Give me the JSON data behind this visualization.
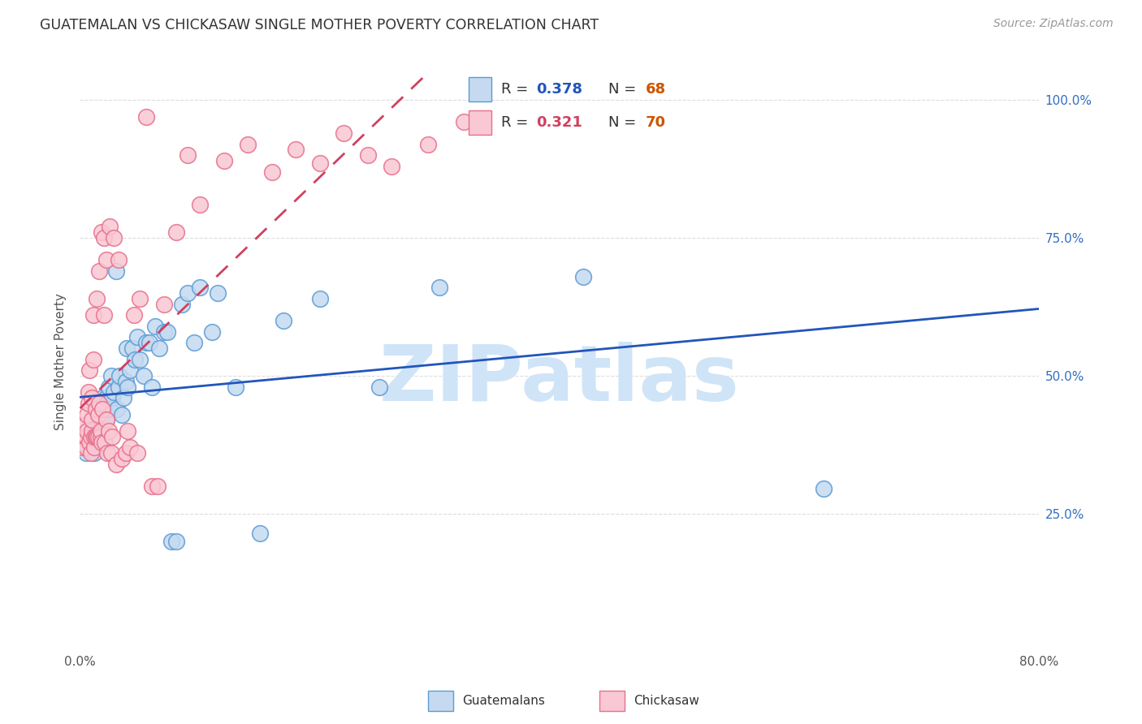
{
  "title": "GUATEMALAN VS CHICKASAW SINGLE MOTHER POVERTY CORRELATION CHART",
  "source": "Source: ZipAtlas.com",
  "ylabel": "Single Mother Poverty",
  "legend_blue_r": "0.378",
  "legend_blue_n": "68",
  "legend_pink_r": "0.321",
  "legend_pink_n": "70",
  "blue_scatter_face": "#c5daf0",
  "blue_scatter_edge": "#5b9bd5",
  "pink_scatter_face": "#f9c8d4",
  "pink_scatter_edge": "#e8708a",
  "trendline_blue": "#2255bb",
  "trendline_pink": "#d04060",
  "watermark_color": "#d0e4f8",
  "background": "#ffffff",
  "blue_points_x": [
    0.005,
    0.005,
    0.005,
    0.008,
    0.01,
    0.01,
    0.012,
    0.012,
    0.013,
    0.013,
    0.015,
    0.015,
    0.015,
    0.015,
    0.016,
    0.016,
    0.017,
    0.018,
    0.018,
    0.019,
    0.02,
    0.02,
    0.022,
    0.022,
    0.023,
    0.024,
    0.025,
    0.026,
    0.027,
    0.028,
    0.03,
    0.031,
    0.032,
    0.033,
    0.035,
    0.036,
    0.038,
    0.039,
    0.04,
    0.042,
    0.044,
    0.046,
    0.048,
    0.05,
    0.053,
    0.055,
    0.058,
    0.06,
    0.063,
    0.066,
    0.07,
    0.073,
    0.076,
    0.08,
    0.085,
    0.09,
    0.095,
    0.1,
    0.11,
    0.115,
    0.13,
    0.15,
    0.17,
    0.2,
    0.25,
    0.3,
    0.42,
    0.62
  ],
  "blue_points_y": [
    0.39,
    0.37,
    0.36,
    0.39,
    0.37,
    0.4,
    0.38,
    0.36,
    0.39,
    0.41,
    0.39,
    0.4,
    0.38,
    0.42,
    0.45,
    0.43,
    0.39,
    0.41,
    0.43,
    0.46,
    0.38,
    0.44,
    0.42,
    0.46,
    0.45,
    0.48,
    0.44,
    0.5,
    0.46,
    0.47,
    0.69,
    0.44,
    0.48,
    0.5,
    0.43,
    0.46,
    0.49,
    0.55,
    0.48,
    0.51,
    0.55,
    0.53,
    0.57,
    0.53,
    0.5,
    0.56,
    0.56,
    0.48,
    0.59,
    0.55,
    0.58,
    0.58,
    0.2,
    0.2,
    0.63,
    0.65,
    0.56,
    0.66,
    0.58,
    0.65,
    0.48,
    0.215,
    0.6,
    0.64,
    0.48,
    0.66,
    0.68,
    0.295
  ],
  "pink_points_x": [
    0.002,
    0.003,
    0.004,
    0.005,
    0.005,
    0.006,
    0.006,
    0.007,
    0.007,
    0.008,
    0.008,
    0.009,
    0.009,
    0.01,
    0.01,
    0.01,
    0.011,
    0.011,
    0.012,
    0.012,
    0.013,
    0.013,
    0.014,
    0.014,
    0.015,
    0.015,
    0.016,
    0.016,
    0.017,
    0.017,
    0.018,
    0.018,
    0.019,
    0.02,
    0.02,
    0.021,
    0.022,
    0.022,
    0.023,
    0.024,
    0.025,
    0.026,
    0.027,
    0.028,
    0.03,
    0.032,
    0.035,
    0.038,
    0.04,
    0.042,
    0.045,
    0.048,
    0.05,
    0.055,
    0.06,
    0.065,
    0.07,
    0.08,
    0.09,
    0.1,
    0.12,
    0.14,
    0.16,
    0.18,
    0.2,
    0.22,
    0.24,
    0.26,
    0.29,
    0.32
  ],
  "pink_points_y": [
    0.37,
    0.39,
    0.41,
    0.37,
    0.39,
    0.4,
    0.43,
    0.45,
    0.47,
    0.38,
    0.51,
    0.36,
    0.39,
    0.4,
    0.42,
    0.46,
    0.53,
    0.61,
    0.37,
    0.39,
    0.39,
    0.44,
    0.64,
    0.39,
    0.39,
    0.43,
    0.45,
    0.69,
    0.39,
    0.4,
    0.76,
    0.38,
    0.44,
    0.61,
    0.75,
    0.38,
    0.42,
    0.71,
    0.36,
    0.4,
    0.77,
    0.36,
    0.39,
    0.75,
    0.34,
    0.71,
    0.35,
    0.36,
    0.4,
    0.37,
    0.61,
    0.36,
    0.64,
    0.97,
    0.3,
    0.3,
    0.63,
    0.76,
    0.9,
    0.81,
    0.89,
    0.92,
    0.87,
    0.91,
    0.885,
    0.94,
    0.9,
    0.88,
    0.92,
    0.96
  ],
  "xlim": [
    0.0,
    0.8
  ],
  "ylim": [
    0.0,
    1.05
  ],
  "ytick_vals": [
    0.0,
    0.25,
    0.5,
    0.75,
    1.0
  ],
  "ytick_labels": [
    "",
    "25.0%",
    "50.0%",
    "75.0%",
    "100.0%"
  ]
}
